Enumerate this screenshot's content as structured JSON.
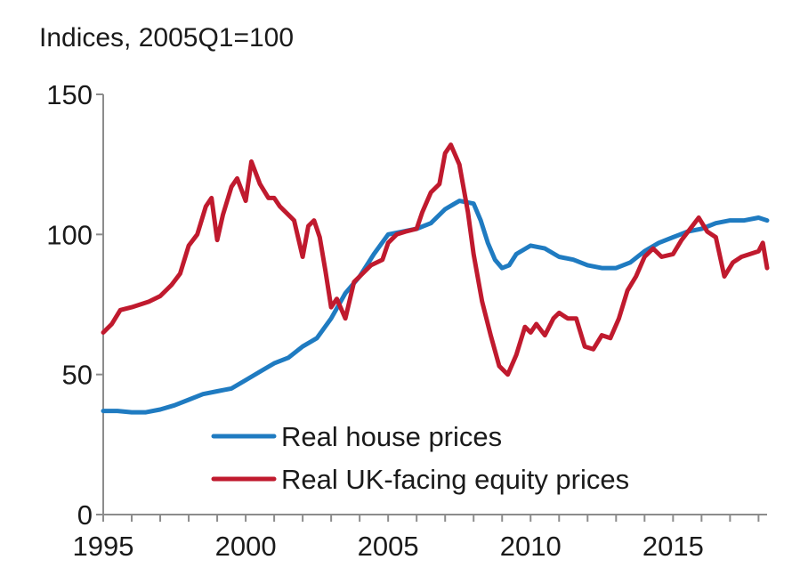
{
  "chart_data": {
    "type": "line",
    "annotation": "Indices, 2005Q1=100",
    "ylim": [
      0,
      150
    ],
    "xlim": [
      1995,
      2018.3
    ],
    "yticks": [
      0,
      50,
      100,
      150
    ],
    "xticks": [
      1995,
      2000,
      2005,
      2010,
      2015
    ],
    "grid": false,
    "legend_position": "bottom-center",
    "series": [
      {
        "name": "Real house prices",
        "color": "#1f7bc1",
        "x": [
          1995,
          1995.5,
          1996,
          1996.5,
          1997,
          1997.5,
          1998,
          1998.5,
          1999,
          1999.5,
          2000,
          2000.5,
          2001,
          2001.5,
          2002,
          2002.5,
          2003,
          2003.5,
          2004,
          2004.5,
          2005,
          2005.5,
          2006,
          2006.5,
          2007,
          2007.5,
          2008,
          2008.25,
          2008.5,
          2008.75,
          2009,
          2009.25,
          2009.5,
          2010,
          2010.5,
          2011,
          2011.5,
          2012,
          2012.5,
          2013,
          2013.5,
          2014,
          2014.5,
          2015,
          2015.5,
          2016,
          2016.5,
          2017,
          2017.5,
          2018,
          2018.3
        ],
        "values": [
          37,
          37,
          36.5,
          36.5,
          37.5,
          39,
          41,
          43,
          44,
          45,
          48,
          51,
          54,
          56,
          60,
          63,
          70,
          79,
          85,
          93,
          100,
          101,
          102,
          104,
          109,
          112,
          111,
          105,
          97,
          91,
          88,
          89,
          93,
          96,
          95,
          92,
          91,
          89,
          88,
          88,
          90,
          94,
          97,
          99,
          101,
          102,
          104,
          105,
          105,
          106,
          105
        ]
      },
      {
        "name": "Real UK-facing equity prices",
        "color": "#c01a2e",
        "x": [
          1995,
          1995.3,
          1995.6,
          1996,
          1996.3,
          1996.6,
          1997,
          1997.4,
          1997.7,
          1998,
          1998.3,
          1998.6,
          1998.8,
          1999,
          1999.2,
          1999.5,
          1999.7,
          2000,
          2000.2,
          2000.5,
          2000.8,
          2001,
          2001.2,
          2001.5,
          2001.7,
          2002,
          2002.2,
          2002.4,
          2002.6,
          2002.8,
          2003,
          2003.2,
          2003.5,
          2003.8,
          2004,
          2004.4,
          2004.8,
          2005,
          2005.3,
          2005.6,
          2006,
          2006.2,
          2006.5,
          2006.8,
          2007,
          2007.2,
          2007.5,
          2007.8,
          2008,
          2008.3,
          2008.6,
          2008.9,
          2009.2,
          2009.5,
          2009.8,
          2010,
          2010.2,
          2010.5,
          2010.8,
          2011,
          2011.3,
          2011.6,
          2011.9,
          2012.2,
          2012.5,
          2012.8,
          2013.1,
          2013.4,
          2013.7,
          2014,
          2014.3,
          2014.6,
          2015,
          2015.3,
          2015.6,
          2015.9,
          2016.2,
          2016.5,
          2016.8,
          2017.1,
          2017.4,
          2017.7,
          2018,
          2018.15,
          2018.3
        ],
        "values": [
          65,
          68,
          73,
          74,
          75,
          76,
          78,
          82,
          86,
          96,
          100,
          110,
          113,
          98,
          107,
          117,
          120,
          112,
          126,
          118,
          113,
          113,
          110,
          107,
          105,
          92,
          103,
          105,
          99,
          87,
          74,
          77,
          70,
          83,
          85,
          89,
          91,
          97,
          100,
          101,
          102,
          108,
          115,
          118,
          129,
          132,
          125,
          108,
          93,
          76,
          64,
          53,
          50,
          57,
          67,
          65,
          68,
          64,
          70,
          72,
          70,
          70,
          60,
          59,
          64,
          63,
          70,
          80,
          85,
          92,
          95,
          92,
          93,
          98,
          102,
          106,
          101,
          99,
          85,
          90,
          92,
          93,
          94,
          97,
          88
        ]
      }
    ]
  }
}
